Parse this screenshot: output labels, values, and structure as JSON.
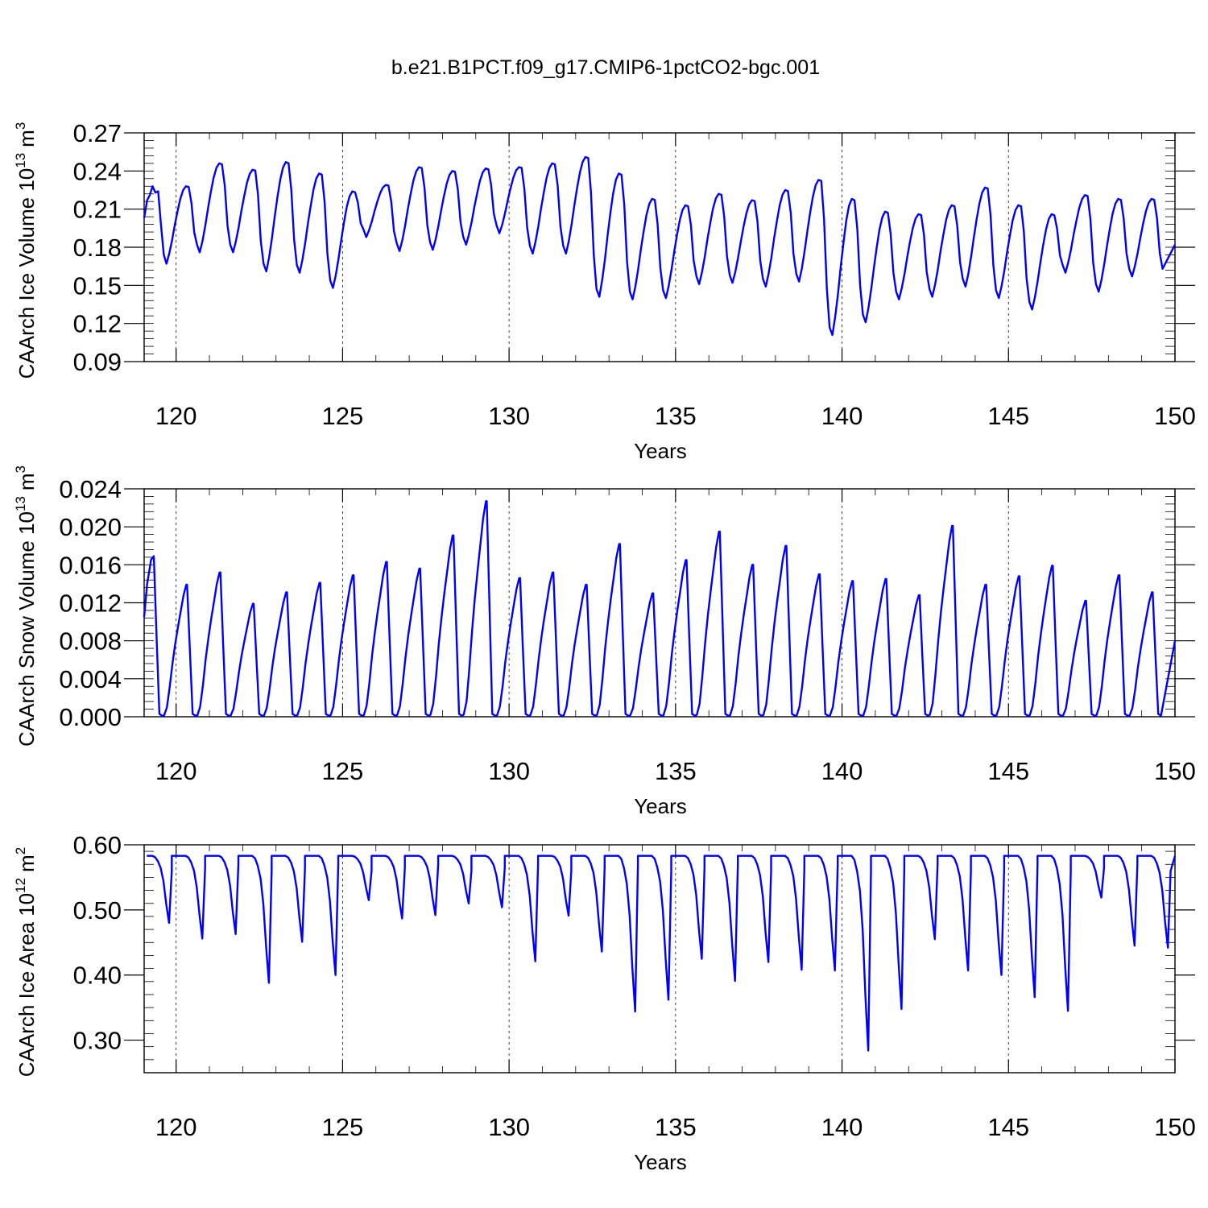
{
  "title": "b.e21.B1PCT.f09_g17.CMIP6-1pctCO2-bgc.001",
  "colors": {
    "line": "#0000ff",
    "axes": "#000000"
  },
  "chart_data": [
    {
      "type": "line",
      "ylabel_main": "CAArch Ice Volume 10",
      "ylabel_exp": "13",
      "ylabel_unit": "m",
      "ylabel_unit_exp": "3",
      "xlabel": "Years",
      "xlim": [
        119.04,
        150.0
      ],
      "ylim": [
        0.09,
        0.27
      ],
      "yticks": [
        "0.09",
        "0.12",
        "0.15",
        "0.18",
        "0.21",
        "0.24",
        "0.27"
      ],
      "xticks": [
        "120",
        "125",
        "130",
        "135",
        "140",
        "145",
        "150"
      ],
      "grid_x": true,
      "series": [
        {
          "minima": [
            0.167,
            0.176,
            0.176,
            0.161,
            0.16,
            0.148,
            0.188,
            0.177,
            0.178,
            0.182,
            0.191,
            0.175,
            0.175,
            0.141,
            0.139,
            0.14,
            0.151,
            0.152,
            0.149,
            0.153,
            0.111,
            0.121,
            0.139,
            0.141,
            0.149,
            0.14,
            0.131,
            0.16,
            0.145,
            0.157
          ],
          "maxima": [
            0.228,
            0.246,
            0.241,
            0.247,
            0.238,
            0.224,
            0.229,
            0.243,
            0.24,
            0.242,
            0.243,
            0.246,
            0.251,
            0.238,
            0.218,
            0.213,
            0.222,
            0.217,
            0.225,
            0.233,
            0.218,
            0.208,
            0.206,
            0.213,
            0.227,
            0.213,
            0.206,
            0.221,
            0.218,
            0.218
          ]
        }
      ]
    },
    {
      "type": "line",
      "ylabel_main": "CAArch Snow Volume 10",
      "ylabel_exp": "13",
      "ylabel_unit": "m",
      "ylabel_unit_exp": "3",
      "xlabel": "Years",
      "xlim": [
        119.04,
        150.0
      ],
      "ylim": [
        0.0,
        0.024
      ],
      "yticks": [
        "0.000",
        "0.004",
        "0.008",
        "0.012",
        "0.016",
        "0.020",
        "0.024"
      ],
      "xticks": [
        "120",
        "125",
        "130",
        "135",
        "140",
        "145",
        "150"
      ],
      "grid_x": true,
      "series": [
        {
          "maxima": [
            0.0169,
            0.0139,
            0.0152,
            0.0119,
            0.0131,
            0.0141,
            0.0149,
            0.0163,
            0.0156,
            0.0191,
            0.0227,
            0.0146,
            0.0152,
            0.0139,
            0.0182,
            0.013,
            0.0165,
            0.0195,
            0.016,
            0.018,
            0.015,
            0.0143,
            0.0145,
            0.0128,
            0.0201,
            0.0139,
            0.0148,
            0.0159,
            0.0122,
            0.0149,
            0.0131
          ],
          "end_value": 0.008
        }
      ]
    },
    {
      "type": "line",
      "ylabel_main": "CAArch Ice Area 10",
      "ylabel_exp": "12",
      "ylabel_unit": "m",
      "ylabel_unit_exp": "2",
      "xlabel": "Years",
      "xlim": [
        119.04,
        150.0
      ],
      "ylim": [
        0.25,
        0.6
      ],
      "yticks": [
        "0.30",
        "0.40",
        "0.50",
        "0.60"
      ],
      "xticks": [
        "120",
        "125",
        "130",
        "135",
        "140",
        "145",
        "150"
      ],
      "grid_x": true,
      "series": [
        {
          "plateau": 0.583,
          "minima": [
            0.48,
            0.456,
            0.463,
            0.388,
            0.451,
            0.4,
            0.515,
            0.487,
            0.492,
            0.51,
            0.504,
            0.421,
            0.491,
            0.436,
            0.344,
            0.362,
            0.425,
            0.391,
            0.42,
            0.408,
            0.407,
            0.284,
            0.348,
            0.455,
            0.407,
            0.4,
            0.366,
            0.345,
            0.519,
            0.445,
            0.442
          ]
        }
      ]
    }
  ]
}
